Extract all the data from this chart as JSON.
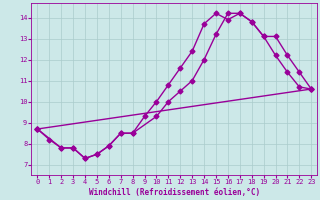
{
  "xlabel": "Windchill (Refroidissement éolien,°C)",
  "bg_color": "#cce8e8",
  "line_color": "#990099",
  "grid_color": "#aacccc",
  "xlim": [
    -0.5,
    23.5
  ],
  "ylim": [
    6.5,
    14.7
  ],
  "xticks": [
    0,
    1,
    2,
    3,
    4,
    5,
    6,
    7,
    8,
    9,
    10,
    11,
    12,
    13,
    14,
    15,
    16,
    17,
    18,
    19,
    20,
    21,
    22,
    23
  ],
  "yticks": [
    7,
    8,
    9,
    10,
    11,
    12,
    13,
    14
  ],
  "line1_x": [
    0,
    1,
    2,
    3,
    4,
    5,
    6,
    7,
    8,
    9,
    10,
    11,
    12,
    13,
    14,
    15,
    16,
    17,
    18,
    19,
    20,
    21,
    22,
    23
  ],
  "line1_y": [
    8.7,
    8.2,
    7.8,
    7.8,
    7.3,
    7.5,
    7.9,
    8.5,
    8.5,
    9.3,
    10.0,
    10.8,
    11.6,
    12.4,
    13.7,
    14.2,
    13.9,
    14.2,
    13.8,
    13.1,
    12.2,
    11.4,
    10.7,
    10.6
  ],
  "line2_x": [
    0,
    2,
    3,
    4,
    5,
    6,
    7,
    8,
    10,
    11,
    12,
    13,
    14,
    15,
    16,
    17,
    18,
    19,
    20,
    21,
    22,
    23
  ],
  "line2_y": [
    8.7,
    7.8,
    7.8,
    7.3,
    7.5,
    7.9,
    8.5,
    8.5,
    9.3,
    10.0,
    10.5,
    11.0,
    12.0,
    13.2,
    14.2,
    14.2,
    13.8,
    13.1,
    13.1,
    12.2,
    11.4,
    10.6
  ],
  "line3_x": [
    0,
    23
  ],
  "line3_y": [
    8.7,
    10.6
  ],
  "marker": "D",
  "markersize": 2.5,
  "linewidth": 1.0
}
